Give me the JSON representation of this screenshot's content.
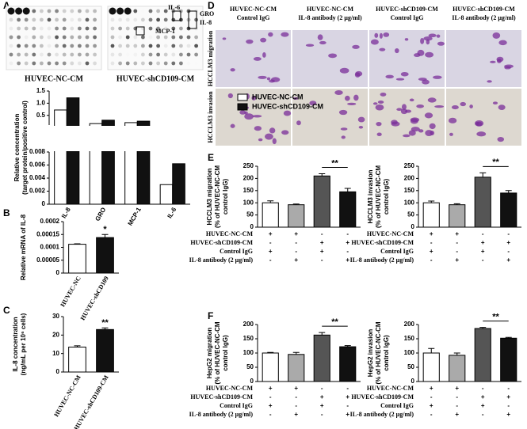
{
  "panels": [
    "A",
    "B",
    "C",
    "D",
    "E",
    "F"
  ],
  "blot": {
    "samples": [
      "HUVEC-NC-CM",
      "HUVEC-shCD109-CM"
    ],
    "callouts": [
      "IL-6",
      "GRO",
      "IL-8",
      "MCP-1"
    ]
  },
  "micrographs": {
    "columns": [
      [
        "HUVEC-NC-CM",
        "Control IgG"
      ],
      [
        "HUVEC-NC-CM",
        "IL-8 antibody (2 μg/ml)"
      ],
      [
        "HUVEC-shCD109-CM",
        "Control IgG"
      ],
      [
        "HUVEC-shCD109-CM",
        "IL-8 antibody (2 μg/ml)"
      ]
    ],
    "rows": [
      "HCCLM3 migration",
      "HCCLM3 invasion"
    ]
  },
  "chart_data": [
    {
      "type": "bar",
      "ylabel": [
        "Relative concentration",
        "(target protein/positive control)"
      ],
      "categories": [
        "IL-8",
        "GRO",
        "MCP-1",
        "IL-6"
      ],
      "series": [
        {
          "name": "HUVEC-NC-CM",
          "color": "#ffffff",
          "values": [
            0.72,
            0.16,
            0.2,
            0.003
          ]
        },
        {
          "name": "HUVEC-shCD109-CM",
          "color": "#111111",
          "values": [
            1.22,
            0.3,
            0.26,
            0.0062
          ]
        }
      ],
      "ylim": [
        0,
        1.5
      ],
      "ybreak": [
        0.008,
        0.1
      ],
      "yticks": [
        0,
        0.002,
        0.004,
        0.006,
        0.008,
        0.5,
        {
          "value": 1,
          "label": "1.0"
        },
        1.5
      ]
    },
    {
      "type": "bar",
      "ylabel": [
        "Relative mRNA of IL-8"
      ],
      "categories": [
        "HUVEC-NC",
        "HUVEC-shCD109"
      ],
      "values": [
        0.000112,
        0.000138
      ],
      "errors": [
        2e-06,
        1.2e-05
      ],
      "colors": [
        "#ffffff",
        "#111111"
      ],
      "ylim": [
        0,
        0.0002
      ],
      "yticks": [
        0,
        5e-05,
        0.0001,
        0.00015,
        0.0002
      ],
      "annotation": "*"
    },
    {
      "type": "bar",
      "ylabel": [
        "IL-8 concentration",
        "(ng/mL per 10⁶ cells)"
      ],
      "categories": [
        "HUVEC-NC-CM",
        "HUVEC-shCD109-CM"
      ],
      "values": [
        13.5,
        23
      ],
      "errors": [
        0.7,
        0.9
      ],
      "colors": [
        "#ffffff",
        "#111111"
      ],
      "ylim": [
        0,
        30
      ],
      "yticks": [
        0,
        10,
        20,
        30
      ],
      "annotation": "**"
    },
    {
      "type": "bar",
      "ylabel": [
        "HCCLM3 migration",
        "(% of HUVEC-NC-CM",
        "control IgG)"
      ],
      "values": [
        100,
        92,
        210,
        145
      ],
      "errors": [
        8,
        3,
        9,
        14
      ],
      "colors": [
        "#ffffff",
        "#aaaaaa",
        "#555555",
        "#111111"
      ],
      "ylim": [
        0,
        250
      ],
      "yticks": [
        0,
        50,
        100,
        150,
        200,
        250
      ],
      "annotation": "**",
      "conditions": [
        {
          "label": "HUVEC-NC-CM",
          "signs": [
            "+",
            "+",
            "-",
            "-"
          ]
        },
        {
          "label": "HUVEC-shCD109-CM",
          "signs": [
            "-",
            "-",
            "+",
            "+"
          ]
        },
        {
          "label": "Control IgG",
          "signs": [
            "+",
            "-",
            "+",
            "-"
          ]
        },
        {
          "label": "IL-8 antibody (2 μg/ml)",
          "signs": [
            "-",
            "+",
            "-",
            "+"
          ]
        }
      ]
    },
    {
      "type": "bar",
      "ylabel": [
        "HCCLM3 invasion",
        "(% of HUVEC-NC-CM",
        "control IgG)"
      ],
      "values": [
        100,
        92,
        205,
        140
      ],
      "errors": [
        7,
        4,
        18,
        10
      ],
      "colors": [
        "#ffffff",
        "#aaaaaa",
        "#555555",
        "#111111"
      ],
      "ylim": [
        0,
        250
      ],
      "yticks": [
        0,
        50,
        100,
        150,
        200,
        250
      ],
      "annotation": "**",
      "conditions": [
        {
          "label": "HUVEC-NC-CM",
          "signs": [
            "+",
            "+",
            "-",
            "-"
          ]
        },
        {
          "label": "HUVEC-shCD109-CM",
          "signs": [
            "-",
            "-",
            "+",
            "+"
          ]
        },
        {
          "label": "Control IgG",
          "signs": [
            "+",
            "-",
            "+",
            "-"
          ]
        },
        {
          "label": "IL-8 antibody (2 μg/ml)",
          "signs": [
            "-",
            "+",
            "-",
            "+"
          ]
        }
      ]
    },
    {
      "type": "bar",
      "ylabel": [
        "HepG2 migration",
        "(% of HUVEC-NC-CM",
        "control IgG)"
      ],
      "values": [
        100,
        95,
        163,
        122
      ],
      "errors": [
        2,
        7,
        9,
        4
      ],
      "colors": [
        "#ffffff",
        "#aaaaaa",
        "#555555",
        "#111111"
      ],
      "ylim": [
        0,
        200
      ],
      "yticks": [
        0,
        50,
        100,
        150,
        200
      ],
      "annotation": "**",
      "conditions": [
        {
          "label": "HUVEC-NC-CM",
          "signs": [
            "+",
            "+",
            "-",
            "-"
          ]
        },
        {
          "label": "HUVEC-shCD109-CM",
          "signs": [
            "-",
            "-",
            "+",
            "+"
          ]
        },
        {
          "label": "Control IgG",
          "signs": [
            "+",
            "-",
            "+",
            "-"
          ]
        },
        {
          "label": "IL-8 antibody (2 μg/ml)",
          "signs": [
            "-",
            "+",
            "-",
            "+"
          ]
        }
      ]
    },
    {
      "type": "bar",
      "ylabel": [
        "HepG2 invasion",
        "(% of HUVEC-NC-CM",
        "control IgG)"
      ],
      "values": [
        100,
        92,
        186,
        152
      ],
      "errors": [
        16,
        8,
        4,
        3
      ],
      "colors": [
        "#ffffff",
        "#aaaaaa",
        "#555555",
        "#111111"
      ],
      "ylim": [
        0,
        200
      ],
      "yticks": [
        0,
        50,
        100,
        150,
        200
      ],
      "annotation": "**",
      "conditions": [
        {
          "label": "HUVEC-NC-CM",
          "signs": [
            "+",
            "+",
            "-",
            "-"
          ]
        },
        {
          "label": "HUVEC-shCD109-CM",
          "signs": [
            "-",
            "-",
            "+",
            "+"
          ]
        },
        {
          "label": "Control IgG",
          "signs": [
            "+",
            "-",
            "+",
            "-"
          ]
        },
        {
          "label": "IL-8 antibody (2 μg/ml)",
          "signs": [
            "-",
            "+",
            "-",
            "+"
          ]
        }
      ]
    }
  ]
}
